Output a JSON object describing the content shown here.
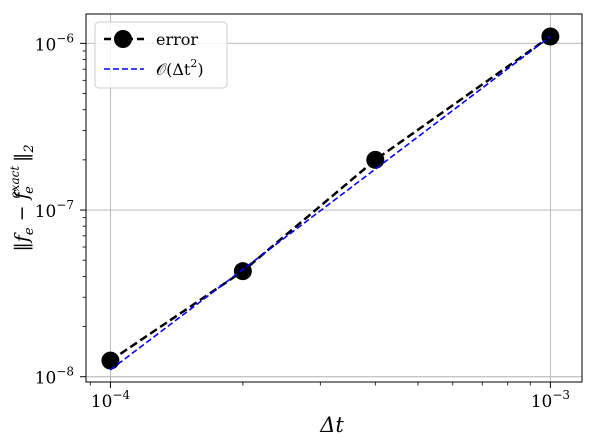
{
  "chart_data": {
    "type": "line",
    "xscale": "log",
    "yscale": "log",
    "xlim": [
      8.8e-05,
      0.00118
    ],
    "ylim": [
      9.3e-09,
      1.5e-06
    ],
    "grid": true,
    "legend_position": "top-left",
    "xlabel": "Δt",
    "ylabel_parts": {
      "pre": "‖f",
      "sub": "e",
      "mid": " − f",
      "sup": "exact",
      "sub2": "e",
      "post": "‖",
      "tail": "2"
    },
    "x_ticks": [
      {
        "value": 0.0001,
        "base": "10",
        "exp": "−4"
      },
      {
        "value": 0.001,
        "base": "10",
        "exp": "−3"
      }
    ],
    "y_ticks": [
      {
        "value": 1e-08,
        "base": "10",
        "exp": "−8"
      },
      {
        "value": 1e-07,
        "base": "10",
        "exp": "−7"
      },
      {
        "value": 1e-06,
        "base": "10",
        "exp": "−6"
      }
    ],
    "series": [
      {
        "name": "error",
        "color": "#000000",
        "style": "dashed-markers",
        "x": [
          0.0001,
          0.0002,
          0.0004,
          0.001
        ],
        "y": [
          1.25e-08,
          4.3e-08,
          2e-07,
          1.1e-06
        ]
      },
      {
        "name_parts": {
          "pre": "𝒪(Δt",
          "sup": "2",
          "post": ")"
        },
        "color": "#0000ff",
        "style": "dashed",
        "x": [
          0.0001,
          0.001
        ],
        "y": [
          1.1e-08,
          1.1e-06
        ]
      }
    ]
  }
}
